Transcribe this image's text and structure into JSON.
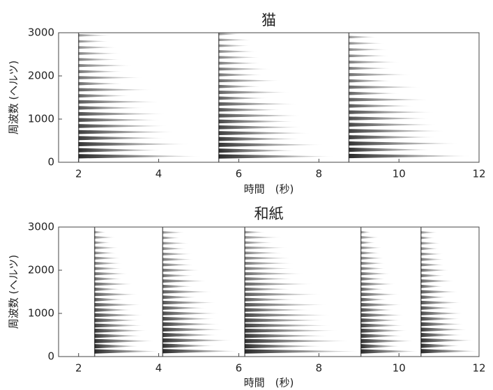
{
  "chart_data": [
    {
      "type": "spectrogram",
      "title": "猫",
      "xlabel": "時間　(秒)",
      "ylabel": "周波数 (ヘルツ)",
      "xlim": [
        1.5,
        12
      ],
      "ylim": [
        0,
        3000
      ],
      "xticks": [
        2,
        4,
        6,
        8,
        10,
        12
      ],
      "yticks": [
        0,
        1000,
        2000,
        3000
      ],
      "color": "#000000",
      "events": {
        "x": [
          2.0,
          5.5,
          8.75
        ],
        "f0": [
          140,
          135,
          145
        ],
        "duration": [
          3.2,
          3.0,
          3.2
        ]
      }
    },
    {
      "type": "spectrogram",
      "title": "和紙",
      "xlabel": "時間　(秒)",
      "ylabel": "周波数 (ヘルツ)",
      "xlim": [
        1.5,
        12
      ],
      "ylim": [
        0,
        3000
      ],
      "xticks": [
        2,
        4,
        6,
        8,
        10,
        12
      ],
      "yticks": [
        0,
        1000,
        2000,
        3000
      ],
      "color": "#000000",
      "events": {
        "x": [
          2.4,
          4.1,
          6.15,
          9.05,
          10.55
        ],
        "f0": [
          120,
          125,
          120,
          120,
          125
        ],
        "duration": [
          1.7,
          2.0,
          3.0,
          1.5,
          1.5
        ]
      }
    }
  ]
}
